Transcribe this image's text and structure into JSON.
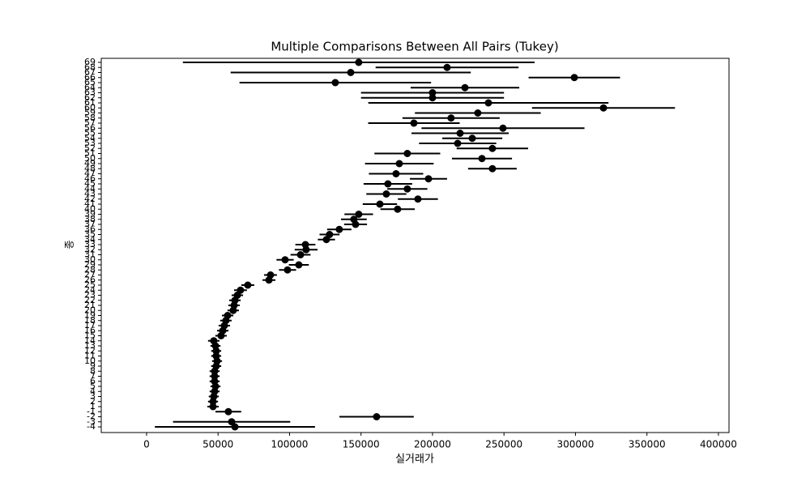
{
  "chart_data": {
    "type": "errorbar",
    "title": "Multiple Comparisons Between All Pairs (Tukey)",
    "x_label": "실거래가",
    "y_label": "종",
    "categories": [
      "69",
      "68",
      "67",
      "66",
      "65",
      "64",
      "63",
      "62",
      "61",
      "60",
      "59",
      "58",
      "57",
      "56",
      "55",
      "54",
      "53",
      "52",
      "51",
      "50",
      "49",
      "48",
      "47",
      "46",
      "45",
      "44",
      "43",
      "42",
      "41",
      "40",
      "39",
      "38",
      "37",
      "36",
      "35",
      "34",
      "33",
      "32",
      "31",
      "30",
      "29",
      "28",
      "27",
      "26",
      "25",
      "24",
      "23",
      "22",
      "21",
      "20",
      "19",
      "18",
      "17",
      "16",
      "15",
      "14",
      "13",
      "12",
      "11",
      "10",
      "9",
      "8",
      "7",
      "6",
      "5",
      "4",
      "3",
      "2",
      "1",
      "-1",
      "-2",
      "-3",
      "-4"
    ],
    "values": [
      148400,
      210200,
      142800,
      299200,
      132000,
      222700,
      200000,
      200000,
      239100,
      319600,
      231700,
      213000,
      187000,
      249300,
      219300,
      227800,
      217600,
      241900,
      182400,
      234600,
      176800,
      241900,
      174500,
      197200,
      168800,
      182400,
      167700,
      189800,
      163200,
      175600,
      148400,
      145000,
      146200,
      134800,
      128000,
      125800,
      111100,
      111600,
      107700,
      96900,
      106500,
      98600,
      86700,
      85600,
      70800,
      65700,
      63500,
      61800,
      61200,
      60600,
      56700,
      55500,
      54400,
      53300,
      52100,
      47000,
      48200,
      48700,
      48700,
      49300,
      48700,
      47600,
      47600,
      47600,
      48200,
      47600,
      47000,
      46500,
      46500,
      57200,
      160900,
      59500,
      61800
    ],
    "errors": [
      123000,
      50000,
      84000,
      32000,
      67000,
      38000,
      50000,
      50000,
      84000,
      50000,
      44000,
      34000,
      32000,
      57000,
      34000,
      21000,
      27000,
      25000,
      23000,
      21000,
      24000,
      17000,
      19000,
      13000,
      17000,
      14000,
      14000,
      14000,
      12000,
      12000,
      10000,
      9000,
      8000,
      8500,
      7000,
      6000,
      7000,
      8000,
      7000,
      6000,
      7000,
      6000,
      4500,
      4500,
      4500,
      4500,
      4000,
      4000,
      4000,
      4000,
      4000,
      4000,
      4000,
      4000,
      4000,
      4000,
      3500,
      3500,
      3500,
      3500,
      3500,
      3500,
      3500,
      3500,
      3500,
      3500,
      3500,
      3500,
      4000,
      9000,
      26000,
      41000,
      56000
    ],
    "color": "#000000",
    "xlim": [
      -31700,
      407400
    ],
    "xticks": [
      0,
      50000,
      100000,
      150000,
      200000,
      250000,
      300000,
      350000,
      400000
    ]
  }
}
